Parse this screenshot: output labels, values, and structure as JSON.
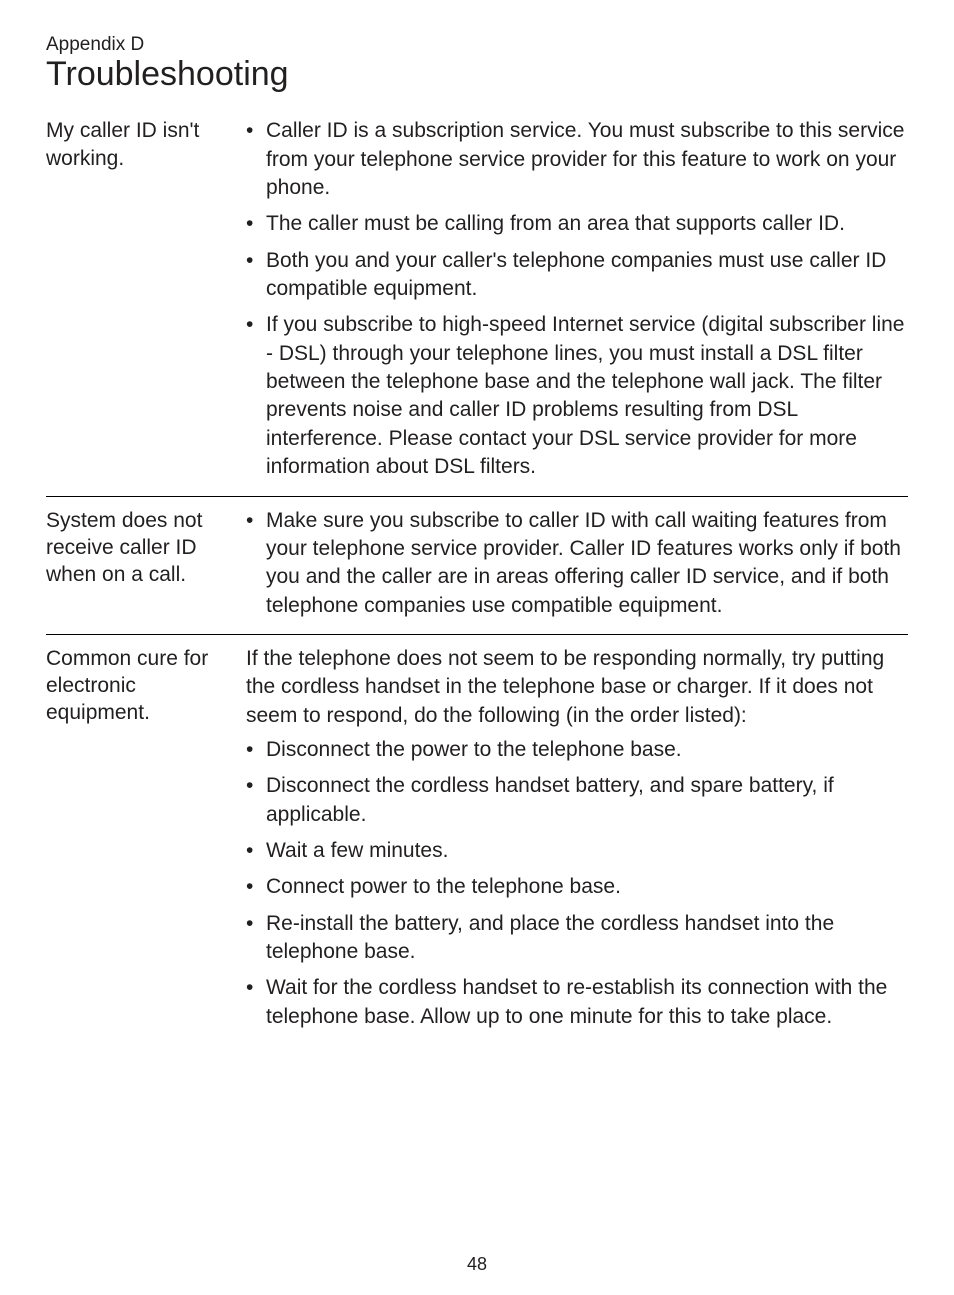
{
  "appendixLabel": "Appendix D",
  "pageTitle": "Troubleshooting",
  "pageNumber": "48",
  "sections": [
    {
      "issue": "My caller ID isn't working.",
      "intro": null,
      "bullets": [
        "Caller ID is a subscription service. You must subscribe to this service from your telephone service provider for this feature to work on your phone.",
        "The caller must be calling from an area that supports caller ID.",
        "Both you and your caller's telephone companies must use caller ID compatible equipment.",
        "If you subscribe to high-speed Internet service (digital subscriber line - DSL) through your telephone lines, you must install a DSL filter between the telephone base and the telephone wall jack. The filter prevents noise and caller ID problems resulting from DSL interference. Please contact your DSL service provider for more information about DSL filters."
      ]
    },
    {
      "issue": "System does not receive caller ID when on a call.",
      "intro": null,
      "bullets": [
        "Make sure you subscribe to caller ID with call waiting features from your telephone service provider. Caller ID features works only if both you and the caller are in areas offering caller ID service, and if both telephone companies use compatible equipment."
      ]
    },
    {
      "issue": "Common cure for electronic equipment.",
      "intro": "If the telephone does not seem to be responding normally, try putting the cordless handset in the telephone base or charger. If it does not seem to respond, do the following (in the order listed):",
      "bullets": [
        "Disconnect the power to the telephone base.",
        "Disconnect the cordless handset battery, and spare battery, if applicable.",
        "Wait a few minutes.",
        "Connect power to the telephone base.",
        "Re-install the battery, and place the cordless handset into the telephone base.",
        "Wait for the cordless handset to re-establish its connection with the telephone base. Allow up to one minute for this to take place."
      ]
    }
  ]
}
